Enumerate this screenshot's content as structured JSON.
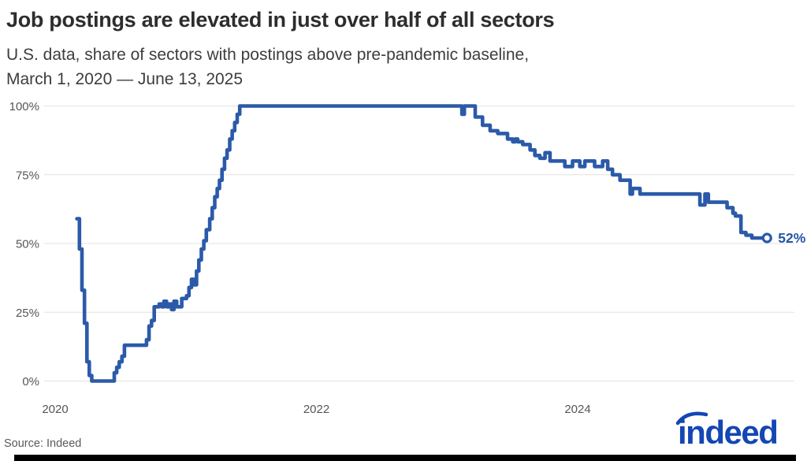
{
  "header": {
    "title": "Job postings are elevated in just over half of all sectors",
    "subtitle_line1": "U.S. data, share of sectors with postings above pre-pandemic baseline,",
    "subtitle_line2": "March 1, 2020 — June 13, 2025"
  },
  "footer": {
    "source": "Source: Indeed",
    "logo_text": "indeed"
  },
  "chart_data": {
    "type": "line",
    "title": "Job postings are elevated in just over half of all sectors",
    "xlabel": "",
    "ylabel": "",
    "step": true,
    "grid": "horizontal",
    "legend": "none",
    "ylim": [
      0,
      100
    ],
    "x_axis": {
      "ticks": [
        "2020",
        "2022",
        "2024"
      ],
      "tick_years": [
        2020,
        2022,
        2024
      ]
    },
    "y_axis": {
      "ticks": [
        "100%",
        "75%",
        "50%",
        "25%",
        "0%"
      ],
      "values": [
        100,
        75,
        50,
        25,
        0
      ]
    },
    "end_label": "52%",
    "colors": {
      "line": "#2b5aa8",
      "end_label": "#2456a8",
      "gridline": "#e2e2e2",
      "axis_text": "#565656",
      "logo": "#1446b4"
    },
    "series": [
      {
        "name": "Share of sectors with postings above pre-pandemic baseline (%)",
        "points": [
          [
            "2020-03-01",
            59
          ],
          [
            "2020-03-08",
            48
          ],
          [
            "2020-03-15",
            33
          ],
          [
            "2020-03-22",
            21
          ],
          [
            "2020-03-29",
            7
          ],
          [
            "2020-04-05",
            2
          ],
          [
            "2020-04-12",
            0
          ],
          [
            "2020-06-14",
            3
          ],
          [
            "2020-06-21",
            5
          ],
          [
            "2020-06-28",
            7
          ],
          [
            "2020-07-05",
            9
          ],
          [
            "2020-07-12",
            13
          ],
          [
            "2020-09-13",
            15
          ],
          [
            "2020-09-20",
            20
          ],
          [
            "2020-09-27",
            22
          ],
          [
            "2020-10-04",
            27
          ],
          [
            "2020-10-18",
            28
          ],
          [
            "2020-10-25",
            27
          ],
          [
            "2020-11-01",
            29
          ],
          [
            "2020-11-08",
            27
          ],
          [
            "2020-11-15",
            28
          ],
          [
            "2020-11-22",
            26
          ],
          [
            "2020-11-29",
            29
          ],
          [
            "2020-12-06",
            27
          ],
          [
            "2020-12-20",
            30
          ],
          [
            "2021-01-03",
            31
          ],
          [
            "2021-01-10",
            34
          ],
          [
            "2021-01-17",
            37
          ],
          [
            "2021-01-24",
            35
          ],
          [
            "2021-01-31",
            40
          ],
          [
            "2021-02-07",
            44
          ],
          [
            "2021-02-14",
            48
          ],
          [
            "2021-02-21",
            51
          ],
          [
            "2021-02-28",
            55
          ],
          [
            "2021-03-07",
            59
          ],
          [
            "2021-03-14",
            63
          ],
          [
            "2021-03-21",
            67
          ],
          [
            "2021-03-28",
            70
          ],
          [
            "2021-04-04",
            73
          ],
          [
            "2021-04-11",
            77
          ],
          [
            "2021-04-18",
            81
          ],
          [
            "2021-04-25",
            84
          ],
          [
            "2021-05-02",
            88
          ],
          [
            "2021-05-09",
            91
          ],
          [
            "2021-05-16",
            94
          ],
          [
            "2021-05-23",
            97
          ],
          [
            "2021-05-30",
            100
          ],
          [
            "2023-02-12",
            97
          ],
          [
            "2023-02-19",
            100
          ],
          [
            "2023-03-19",
            96
          ],
          [
            "2023-04-09",
            93
          ],
          [
            "2023-04-30",
            91
          ],
          [
            "2023-05-21",
            90
          ],
          [
            "2023-06-18",
            88
          ],
          [
            "2023-07-02",
            87
          ],
          [
            "2023-07-09",
            88
          ],
          [
            "2023-07-16",
            87
          ],
          [
            "2023-07-30",
            86
          ],
          [
            "2023-08-20",
            84
          ],
          [
            "2023-09-03",
            82
          ],
          [
            "2023-09-17",
            81
          ],
          [
            "2023-10-01",
            83
          ],
          [
            "2023-10-15",
            80
          ],
          [
            "2023-11-26",
            78
          ],
          [
            "2023-12-17",
            80
          ],
          [
            "2024-01-07",
            78
          ],
          [
            "2024-01-21",
            80
          ],
          [
            "2024-02-18",
            78
          ],
          [
            "2024-03-10",
            80
          ],
          [
            "2024-03-24",
            77
          ],
          [
            "2024-04-07",
            75
          ],
          [
            "2024-04-28",
            73
          ],
          [
            "2024-05-26",
            68
          ],
          [
            "2024-06-02",
            70
          ],
          [
            "2024-06-23",
            68
          ],
          [
            "2024-12-08",
            64
          ],
          [
            "2024-12-22",
            68
          ],
          [
            "2025-01-01",
            65
          ],
          [
            "2025-02-23",
            63
          ],
          [
            "2025-03-09",
            61
          ],
          [
            "2025-03-16",
            60
          ],
          [
            "2025-04-01",
            54
          ],
          [
            "2025-04-15",
            53
          ],
          [
            "2025-05-01",
            52
          ],
          [
            "2025-06-13",
            52
          ]
        ]
      }
    ]
  }
}
